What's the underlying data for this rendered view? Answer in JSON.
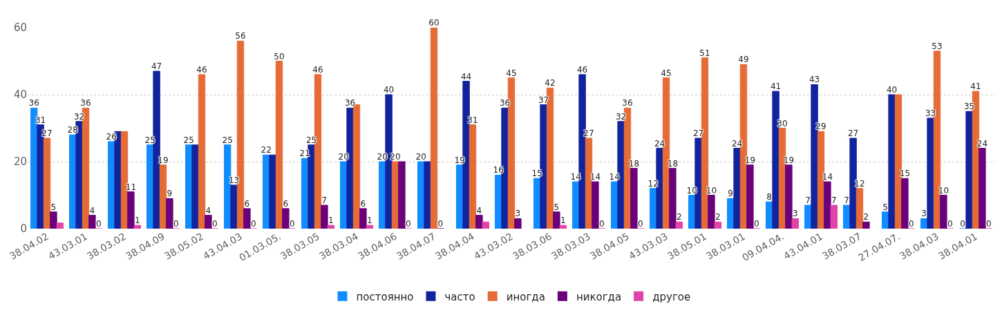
{
  "chart_data": {
    "type": "bar",
    "categories": [
      "38.04.02",
      "43.03.01",
      "38.03.02",
      "38.04.09",
      "38.05.02",
      "43.04.03",
      "01.03.05.",
      "38.03.05",
      "38.03.04",
      "38.04.06",
      "38.04.07",
      "38.04.04",
      "43.03.02",
      "38.03.06",
      "38.03.03",
      "38.04.05",
      "43.03.03",
      "38.05.01",
      "38.03.01",
      "09.04.04.",
      "43.04.01",
      "38.03.07",
      "27.04.07.",
      "38.04.03",
      "38.04.01"
    ],
    "series": [
      {
        "name": "постоянно",
        "color": "#118dff",
        "values": [
          36,
          28,
          26,
          25,
          25,
          25,
          22,
          21,
          20,
          20,
          20,
          19,
          16,
          15,
          14,
          14,
          12,
          10,
          9,
          8,
          7,
          7,
          5,
          3,
          0
        ],
        "value_labels": [
          "36",
          "28",
          "26",
          "25",
          "25",
          "25",
          "22",
          "21",
          "20",
          "20",
          "20",
          "19",
          "16",
          "15",
          "14",
          "14",
          "12",
          "10",
          "9",
          "8",
          "7",
          "7",
          "5",
          "3",
          "0"
        ]
      },
      {
        "name": "часто",
        "color": "#12239e",
        "values": [
          31,
          32,
          29,
          47,
          25,
          13,
          22,
          25,
          36,
          40,
          20,
          44,
          36,
          37,
          46,
          32,
          24,
          27,
          24,
          41,
          43,
          27,
          40,
          33,
          35
        ],
        "value_labels": [
          "31",
          "32",
          null,
          "47",
          null,
          "13",
          null,
          "25",
          "36",
          "40",
          null,
          "44",
          "36",
          "37",
          "46",
          "32",
          "24",
          "27",
          "24",
          "41",
          "43",
          "27",
          "40",
          "33",
          "35"
        ]
      },
      {
        "name": "иногда",
        "color": "#e66c37",
        "values": [
          27,
          36,
          29,
          19,
          46,
          56,
          50,
          46,
          37,
          20,
          60,
          31,
          45,
          42,
          27,
          36,
          45,
          51,
          49,
          30,
          29,
          12,
          40,
          53,
          41
        ],
        "value_labels": [
          "27",
          "36",
          null,
          "19",
          "46",
          "56",
          "50",
          "46",
          null,
          "20",
          "60",
          "31",
          "45",
          "42",
          "27",
          "36",
          "45",
          "51",
          "49",
          "30",
          "29",
          "12",
          null,
          "53",
          "41"
        ]
      },
      {
        "name": "никогда",
        "color": "#6b007b",
        "values": [
          5,
          4,
          11,
          9,
          4,
          6,
          6,
          7,
          6,
          20,
          0,
          4,
          3,
          5,
          14,
          18,
          18,
          10,
          19,
          19,
          14,
          2,
          15,
          10,
          24
        ],
        "value_labels": [
          "5",
          "4",
          "11",
          "9",
          "4",
          "6",
          "6",
          "7",
          "6",
          null,
          "0",
          "4",
          "3",
          "5",
          "14",
          "18",
          "18",
          "10",
          "19",
          "19",
          "14",
          "2",
          "15",
          "10",
          "24"
        ]
      },
      {
        "name": "другое",
        "color": "#e044a7",
        "values": [
          1.7,
          0,
          1,
          0,
          0,
          0,
          0,
          1,
          1,
          0,
          null,
          2,
          null,
          1,
          0,
          0,
          2,
          2,
          0,
          3,
          7,
          null,
          0,
          0,
          0
        ],
        "value_labels": [
          null,
          "0",
          "1",
          "0",
          "0",
          "0",
          "0",
          "1",
          "1",
          "0",
          null,
          null,
          null,
          "1",
          "0",
          "0",
          "2",
          "2",
          "0",
          "3",
          "7",
          null,
          "0",
          "0",
          "0"
        ]
      }
    ],
    "ylim": [
      0,
      60
    ],
    "yticks": [
      0,
      20,
      40,
      60
    ],
    "grid": "y",
    "legend": "bottom"
  }
}
